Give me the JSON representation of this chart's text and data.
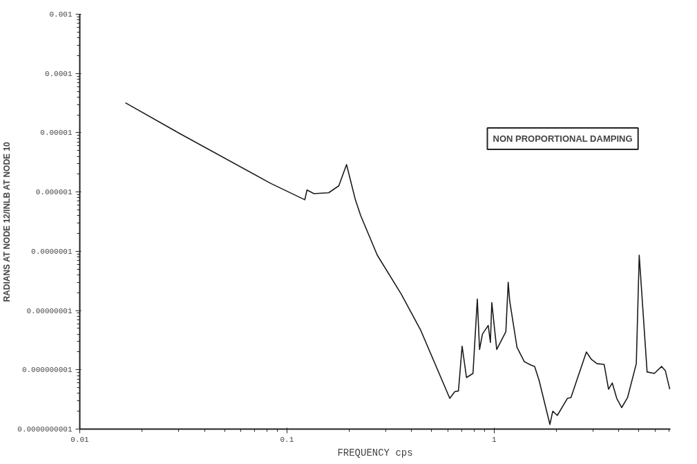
{
  "chart_data": {
    "type": "line",
    "xlabel": "FREQUENCY cps",
    "ylabel": "RADIANS AT NODE 12/INLB AT NODE 10",
    "log": "xy",
    "grid": false,
    "marker": "none",
    "line_style": "solid",
    "xlim": [
      0.01,
      7.1
    ],
    "ylim": [
      1e-10,
      0.001
    ],
    "xticks": [
      0.01,
      0.1,
      1
    ],
    "yticks": [
      {
        "value": 0.001,
        "label": "0.001"
      },
      {
        "value": 0.0001,
        "label": "0.0001"
      },
      {
        "value": 1e-05,
        "label": "0.00001"
      },
      {
        "value": 1e-06,
        "label": "0.000001"
      },
      {
        "value": 1e-07,
        "label": "0.0000001"
      },
      {
        "value": 1e-08,
        "label": "0.00000001"
      },
      {
        "value": 1e-09,
        "label": "0.000000001"
      },
      {
        "value": 1e-10,
        "label": "0.0000000001"
      }
    ],
    "annotations": [
      "NON PROPORTIONAL DAMPING"
    ],
    "x": [
      0.0166,
      0.0299,
      0.0834,
      0.122,
      0.125,
      0.135,
      0.159,
      0.178,
      0.194,
      0.214,
      0.227,
      0.273,
      0.356,
      0.443,
      0.611,
      0.647,
      0.673,
      0.701,
      0.736,
      0.791,
      0.83,
      0.851,
      0.879,
      0.937,
      0.96,
      0.975,
      1.03,
      1.14,
      1.17,
      1.19,
      1.29,
      1.4,
      1.51,
      1.57,
      1.65,
      1.86,
      1.92,
      2.02,
      2.26,
      2.35,
      2.79,
      2.95,
      3.14,
      3.4,
      3.57,
      3.72,
      3.91,
      4.13,
      4.41,
      4.86,
      5.02,
      5.48,
      5.94,
      6.44,
      6.71,
      7.05
    ],
    "series": [
      {
        "color": "#1a1a1a",
        "values": [
          3.2e-05,
          1e-05,
          1.4e-06,
          7.4e-07,
          1.08e-06,
          9.4e-07,
          9.7e-07,
          1.27e-06,
          2.9e-06,
          7.4e-07,
          4e-07,
          8.6e-08,
          1.9e-08,
          4.6e-09,
          3.3e-10,
          4.3e-10,
          4.4e-10,
          2.5e-09,
          7.4e-10,
          8.7e-10,
          1.56e-08,
          2.2e-09,
          4e-09,
          5.6e-09,
          2.9e-09,
          1.36e-08,
          2.2e-09,
          4.4e-09,
          3e-08,
          1.44e-08,
          2.4e-09,
          1.37e-09,
          1.2e-09,
          1.14e-09,
          6.6e-10,
          1.2e-10,
          2e-10,
          1.7e-10,
          3.3e-10,
          3.4e-10,
          2e-09,
          1.5e-09,
          1.27e-09,
          1.23e-09,
          4.7e-10,
          6e-10,
          3.3e-10,
          2.3e-10,
          3.4e-10,
          1.27e-09,
          8.6e-08,
          9.2e-10,
          8.7e-10,
          1.14e-09,
          9.7e-10,
          4.7e-10
        ]
      }
    ]
  }
}
